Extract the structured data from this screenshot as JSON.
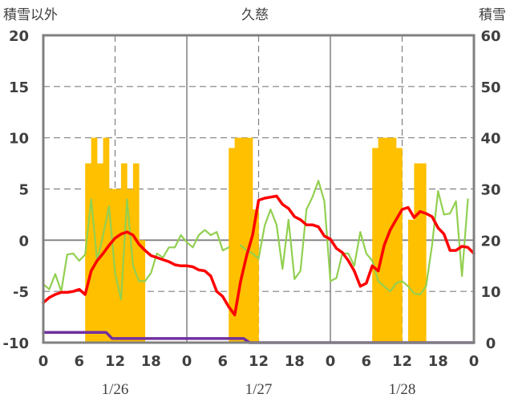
{
  "chart_data": {
    "type": "bar+line",
    "title": "久慈",
    "left_axis_label": "積雪以外",
    "right_axis_label": "積雪",
    "left_ticks": [
      "20",
      "15",
      "10",
      "5",
      "0",
      "-5",
      "-10"
    ],
    "right_ticks": [
      "60",
      "50",
      "40",
      "30",
      "20",
      "10",
      "0"
    ],
    "ylim_left": [
      -10,
      20
    ],
    "ylim_right": [
      0,
      60
    ],
    "x_tick_labels": [
      "0",
      "6",
      "12",
      "18",
      "0",
      "6",
      "12",
      "18",
      "0",
      "6",
      "12",
      "18",
      "0"
    ],
    "x_ticks_hours": [
      0,
      6,
      12,
      18,
      24,
      30,
      36,
      42,
      48,
      54,
      60,
      66,
      72
    ],
    "date_labels": [
      {
        "label": "1/26",
        "hour": 12
      },
      {
        "label": "1/27",
        "hour": 36
      },
      {
        "label": "1/28",
        "hour": 60
      }
    ],
    "colors": {
      "snow_bar": "#FFC000",
      "red_line": "#FF0000",
      "green_line": "#92D050",
      "purple_line": "#7030A0",
      "frame": "#808080"
    },
    "snow_bars": [
      {
        "h": 7.5,
        "v": 35
      },
      {
        "h": 8.5,
        "v": 40
      },
      {
        "h": 9.5,
        "v": 35
      },
      {
        "h": 10.5,
        "v": 40
      },
      {
        "h": 11.5,
        "v": 30
      },
      {
        "h": 12.5,
        "v": 30
      },
      {
        "h": 13.5,
        "v": 35
      },
      {
        "h": 14.5,
        "v": 30
      },
      {
        "h": 15.5,
        "v": 35
      },
      {
        "h": 16.5,
        "v": 20
      },
      {
        "h": 31.5,
        "v": 38
      },
      {
        "h": 32.5,
        "v": 40
      },
      {
        "h": 33.5,
        "v": 40
      },
      {
        "h": 34.5,
        "v": 40
      },
      {
        "h": 35.5,
        "v": 26
      },
      {
        "h": 55.5,
        "v": 38
      },
      {
        "h": 56.5,
        "v": 40
      },
      {
        "h": 57.5,
        "v": 40
      },
      {
        "h": 58.5,
        "v": 40
      },
      {
        "h": 59.5,
        "v": 38
      },
      {
        "h": 61.5,
        "v": 24
      },
      {
        "h": 62.5,
        "v": 35
      },
      {
        "h": 63.5,
        "v": 35
      }
    ],
    "red_series": [
      [
        0,
        -6.1
      ],
      [
        1,
        -5.6
      ],
      [
        2,
        -5.3
      ],
      [
        3,
        -5.1
      ],
      [
        4,
        -5.1
      ],
      [
        5,
        -5.0
      ],
      [
        6,
        -4.8
      ],
      [
        7,
        -5.3
      ],
      [
        8,
        -3.0
      ],
      [
        9,
        -2.0
      ],
      [
        10,
        -1.3
      ],
      [
        11,
        -0.5
      ],
      [
        12,
        0.2
      ],
      [
        13,
        0.6
      ],
      [
        14,
        0.8
      ],
      [
        15,
        0.5
      ],
      [
        16,
        -0.4
      ],
      [
        17,
        -1.0
      ],
      [
        18,
        -1.5
      ],
      [
        19,
        -1.7
      ],
      [
        20,
        -1.9
      ],
      [
        21,
        -2.1
      ],
      [
        22,
        -2.4
      ],
      [
        23,
        -2.5
      ],
      [
        24,
        -2.5
      ],
      [
        25,
        -2.6
      ],
      [
        26,
        -2.9
      ],
      [
        27,
        -3.0
      ],
      [
        28,
        -3.5
      ],
      [
        29,
        -5.0
      ],
      [
        30,
        -5.5
      ],
      [
        31,
        -6.5
      ],
      [
        32,
        -7.3
      ],
      [
        33,
        -4.0
      ],
      [
        34,
        -1.5
      ],
      [
        35,
        0.5
      ],
      [
        36,
        3.9
      ],
      [
        37,
        4.1
      ],
      [
        38,
        4.2
      ],
      [
        39,
        4.3
      ],
      [
        40,
        3.5
      ],
      [
        41,
        3.1
      ],
      [
        42,
        2.3
      ],
      [
        43,
        2.0
      ],
      [
        44,
        1.5
      ],
      [
        45,
        1.5
      ],
      [
        46,
        1.3
      ],
      [
        47,
        0.4
      ],
      [
        48,
        0.1
      ],
      [
        49,
        -0.8
      ],
      [
        50,
        -1.2
      ],
      [
        51,
        -2.0
      ],
      [
        52,
        -3.0
      ],
      [
        53,
        -4.5
      ],
      [
        54,
        -4.2
      ],
      [
        55,
        -2.5
      ],
      [
        56,
        -3.0
      ],
      [
        57,
        -0.5
      ],
      [
        58,
        1.0
      ],
      [
        59,
        2.0
      ],
      [
        60,
        3.0
      ],
      [
        61,
        3.2
      ],
      [
        62,
        2.2
      ],
      [
        63,
        2.8
      ],
      [
        64,
        2.6
      ],
      [
        65,
        2.3
      ],
      [
        66,
        1.2
      ],
      [
        67,
        0.6
      ],
      [
        68,
        -1.0
      ],
      [
        69,
        -1.0
      ],
      [
        70,
        -0.6
      ],
      [
        71,
        -0.7
      ],
      [
        72,
        -1.3
      ]
    ],
    "green_series": [
      [
        0,
        -4.3
      ],
      [
        1,
        -4.8
      ],
      [
        2,
        -3.3
      ],
      [
        3,
        -5.0
      ],
      [
        4,
        -1.4
      ],
      [
        5,
        -1.3
      ],
      [
        6,
        -2.0
      ],
      [
        7,
        -1.4
      ],
      [
        8,
        4.0
      ],
      [
        9,
        -2.0
      ],
      [
        10,
        0.5
      ],
      [
        11,
        3.3
      ],
      [
        12,
        -3.2
      ],
      [
        13,
        -5.8
      ],
      [
        14,
        4.0
      ],
      [
        15,
        -2.5
      ],
      [
        16,
        -4.0
      ],
      [
        17,
        -4.0
      ],
      [
        18,
        -3.2
      ],
      [
        19,
        -1.3
      ],
      [
        20,
        -1.7
      ],
      [
        21,
        -0.7
      ],
      [
        22,
        -0.7
      ],
      [
        23,
        0.5
      ],
      [
        24,
        -0.2
      ],
      [
        25,
        -0.7
      ],
      [
        26,
        0.5
      ],
      [
        27,
        1.0
      ],
      [
        28,
        0.5
      ],
      [
        29,
        0.8
      ],
      [
        30,
        -1.0
      ],
      [
        31,
        -0.7
      ],
      [
        32,
        null
      ],
      [
        33,
        -0.5
      ],
      [
        34,
        -1.0
      ],
      [
        35,
        -1.3
      ],
      [
        36,
        -1.8
      ],
      [
        37,
        1.4
      ],
      [
        38,
        3.0
      ],
      [
        39,
        1.5
      ],
      [
        40,
        -2.8
      ],
      [
        41,
        2.0
      ],
      [
        42,
        -3.8
      ],
      [
        43,
        -3.0
      ],
      [
        44,
        3.0
      ],
      [
        45,
        4.2
      ],
      [
        46,
        5.8
      ],
      [
        47,
        3.8
      ],
      [
        48,
        -4.0
      ],
      [
        49,
        -3.7
      ],
      [
        50,
        -1.3
      ],
      [
        51,
        -1.3
      ],
      [
        52,
        -2.5
      ],
      [
        53,
        0.8
      ],
      [
        54,
        -1.3
      ],
      [
        55,
        -2.0
      ],
      [
        56,
        -4.0
      ],
      [
        57,
        -4.5
      ],
      [
        58,
        -5.0
      ],
      [
        59,
        -4.2
      ],
      [
        60,
        -4.0
      ],
      [
        61,
        -4.5
      ],
      [
        62,
        -5.2
      ],
      [
        63,
        -5.3
      ],
      [
        64,
        -4.5
      ],
      [
        65,
        -0.5
      ],
      [
        66,
        4.8
      ],
      [
        67,
        2.5
      ],
      [
        68,
        2.6
      ],
      [
        69,
        3.8
      ],
      [
        70,
        -3.5
      ],
      [
        71,
        4.0
      ]
    ],
    "purple_series": [
      [
        0,
        -9.0
      ],
      [
        10.5,
        -9.0
      ],
      [
        11.5,
        -9.6
      ],
      [
        33.5,
        -9.6
      ],
      [
        34.5,
        -10.0
      ],
      [
        72,
        -10.0
      ]
    ]
  }
}
